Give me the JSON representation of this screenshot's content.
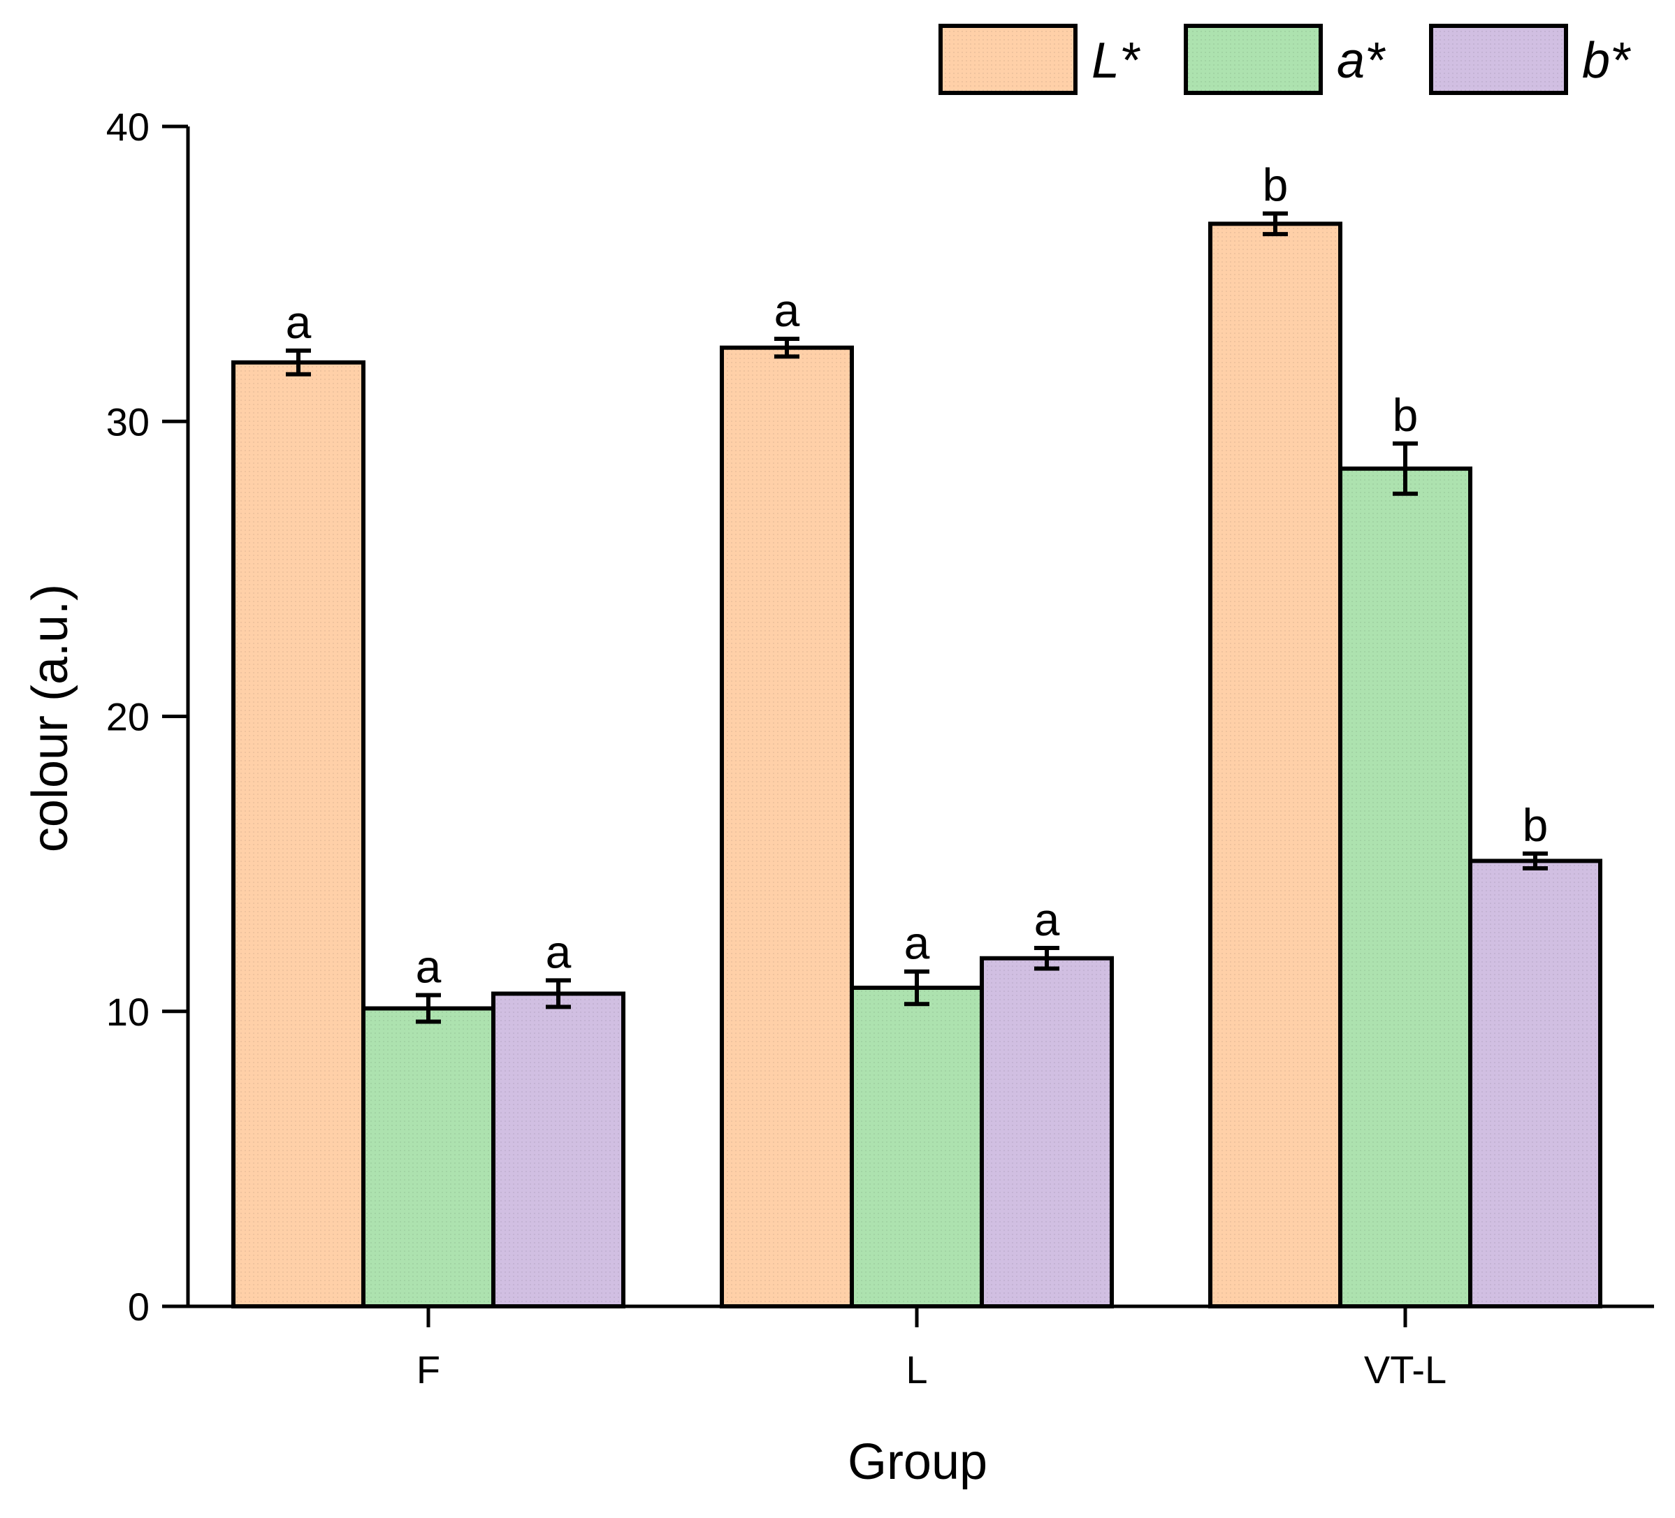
{
  "chart_data": {
    "type": "bar",
    "title": "",
    "xlabel": "Group",
    "ylabel": "colour (a.u.)",
    "categories": [
      "F",
      "L",
      "VT-L"
    ],
    "ylim": [
      0,
      40
    ],
    "yticks": [
      0,
      10,
      20,
      30,
      40
    ],
    "ytick_labels": [
      "0",
      "10",
      "20",
      "30",
      "40"
    ],
    "grid": false,
    "legend_position": "top-right",
    "series": [
      {
        "name": "L*",
        "color": "#FFD0A8",
        "values": [
          32.0,
          32.5,
          36.7
        ],
        "errors": [
          0.4,
          0.3,
          0.35
        ],
        "significance": [
          "a",
          "a",
          "b"
        ]
      },
      {
        "name": "a*",
        "color": "#ADE2AF",
        "values": [
          10.1,
          10.8,
          28.4
        ],
        "errors": [
          0.45,
          0.55,
          0.85
        ],
        "significance": [
          "a",
          "a",
          "b"
        ]
      },
      {
        "name": "b*",
        "color": "#D1BFE2",
        "values": [
          10.6,
          11.8,
          15.1
        ],
        "errors": [
          0.45,
          0.35,
          0.25
        ],
        "significance": [
          "a",
          "a",
          "b"
        ]
      }
    ]
  }
}
